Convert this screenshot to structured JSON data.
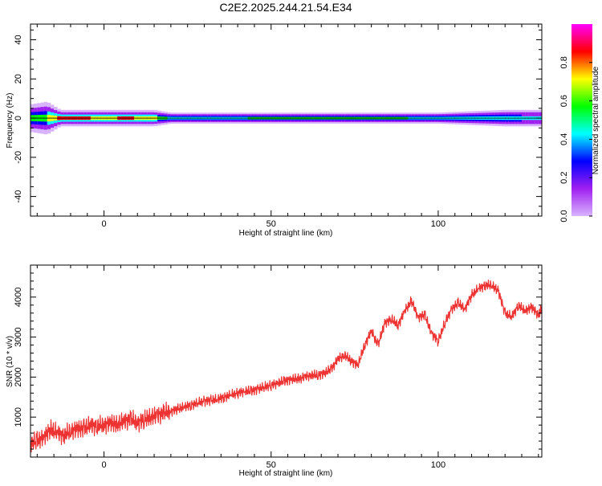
{
  "title": "C2E2.2025.244.21.54.E34",
  "chart_data": [
    {
      "type": "heatmap",
      "title": "C2E2.2025.244.21.54.E34",
      "xlabel": "Height of straight line (km)",
      "ylabel": "Frequency (Hz)",
      "xlim": [
        -22,
        131
      ],
      "ylim": [
        -50,
        48
      ],
      "xticks": [
        0,
        50,
        100
      ],
      "yticks": [
        -40,
        -20,
        0,
        20,
        40
      ],
      "colorbar": {
        "label": "Normalized spectral amplitude",
        "range": [
          0,
          1
        ],
        "ticks": [
          0.0,
          0.2,
          0.4,
          0.6,
          0.8
        ],
        "stops": [
          "#d8b4fe",
          "#a020f0",
          "#0000ff",
          "#00ffff",
          "#00ff00",
          "#ffff00",
          "#ff0000",
          "#ff00ff"
        ]
      },
      "centerline_hz": 0,
      "band_profile": [
        {
          "x": -22,
          "halfwidth_hz": 5,
          "amp": 0.6
        },
        {
          "x": -17,
          "halfwidth_hz": 6,
          "amp": 0.7
        },
        {
          "x": -13,
          "halfwidth_hz": 3,
          "amp": 0.95
        },
        {
          "x": -5,
          "halfwidth_hz": 3,
          "amp": 0.9
        },
        {
          "x": 0,
          "halfwidth_hz": 3,
          "amp": 0.7
        },
        {
          "x": 5,
          "halfwidth_hz": 3,
          "amp": 0.9
        },
        {
          "x": 10,
          "halfwidth_hz": 3,
          "amp": 0.85
        },
        {
          "x": 15,
          "halfwidth_hz": 3,
          "amp": 0.8
        },
        {
          "x": 20,
          "halfwidth_hz": 2,
          "amp": 0.5
        },
        {
          "x": 40,
          "halfwidth_hz": 2,
          "amp": 0.55
        },
        {
          "x": 60,
          "halfwidth_hz": 2,
          "amp": 0.7
        },
        {
          "x": 80,
          "halfwidth_hz": 2,
          "amp": 0.6
        },
        {
          "x": 100,
          "halfwidth_hz": 2,
          "amp": 0.55
        },
        {
          "x": 120,
          "halfwidth_hz": 3,
          "amp": 0.5
        },
        {
          "x": 131,
          "halfwidth_hz": 3,
          "amp": 0.45
        }
      ]
    },
    {
      "type": "line",
      "xlabel": "Height of straight line (km)",
      "ylabel": "SNR (10 * v/v)",
      "xlim": [
        -22,
        131
      ],
      "ylim": [
        0,
        4800
      ],
      "xticks": [
        0,
        50,
        100
      ],
      "yticks": [
        1000,
        2000,
        3000,
        4000
      ],
      "line_color": "#ee3333",
      "series": [
        {
          "name": "SNR",
          "x": [
            -22,
            -20,
            -18,
            -16,
            -14,
            -12,
            -10,
            -8,
            -6,
            -4,
            -2,
            0,
            2,
            4,
            6,
            8,
            10,
            12,
            14,
            16,
            18,
            20,
            22,
            24,
            26,
            28,
            30,
            32,
            34,
            36,
            38,
            40,
            42,
            44,
            46,
            48,
            50,
            52,
            54,
            56,
            58,
            60,
            62,
            64,
            66,
            68,
            70,
            72,
            74,
            76,
            78,
            80,
            82,
            84,
            86,
            88,
            90,
            92,
            94,
            96,
            98,
            100,
            102,
            104,
            106,
            108,
            110,
            112,
            114,
            116,
            118,
            120,
            122,
            124,
            126,
            128,
            130,
            131
          ],
          "values": [
            350,
            400,
            500,
            700,
            600,
            550,
            650,
            700,
            720,
            800,
            780,
            800,
            850,
            820,
            900,
            950,
            850,
            950,
            1000,
            1050,
            1100,
            1150,
            1200,
            1250,
            1300,
            1350,
            1400,
            1420,
            1450,
            1500,
            1550,
            1600,
            1650,
            1650,
            1700,
            1750,
            1800,
            1850,
            1900,
            1950,
            1950,
            2000,
            2050,
            2050,
            2100,
            2200,
            2450,
            2550,
            2400,
            2300,
            2800,
            3150,
            2800,
            3350,
            3450,
            3300,
            3650,
            3900,
            3500,
            3550,
            3100,
            2900,
            3350,
            3700,
            3850,
            3700,
            4050,
            4200,
            4300,
            4300,
            4150,
            3600,
            3500,
            3800,
            3650,
            3750,
            3550,
            3700
          ]
        }
      ]
    }
  ]
}
